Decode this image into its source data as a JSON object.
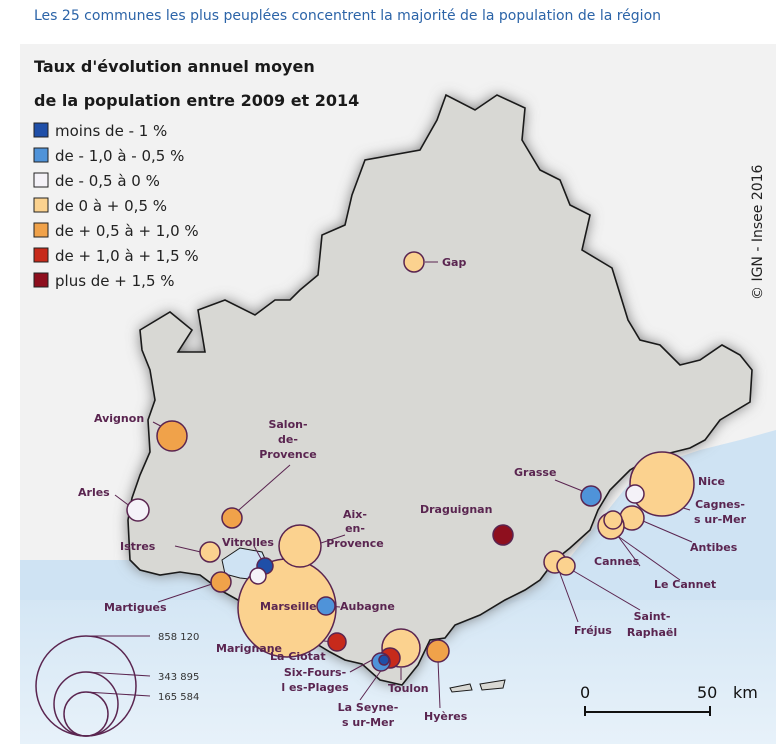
{
  "caption": "Les 25 communes les plus peuplées concentrent la majorité de la population de la région",
  "map": {
    "title_line1": "Taux d'évolution annuel moyen",
    "title_line2": "de la population entre 2009 et 2014",
    "credit": "© IGN - Insee 2016",
    "legend": [
      {
        "label": "moins de - 1 %",
        "color": "#1f4fa8"
      },
      {
        "label": " de - 1,0 à - 0,5 %",
        "color": "#4f93d9"
      },
      {
        "label": " de - 0,5 à 0 %",
        "color": "#f4f2f8"
      },
      {
        "label": "de 0 à + 0,5 %",
        "color": "#fbd28f"
      },
      {
        "label": " de + 0,5 à + 1,0 %",
        "color": "#f0a24a"
      },
      {
        "label": "de + 1,0 à + 1,5 %",
        "color": "#c72a1b"
      },
      {
        "label": "plus de + 1,5 %",
        "color": "#8e0f1e"
      }
    ],
    "size_legend": [
      "858 120",
      "343 895",
      "165 584"
    ],
    "scale": {
      "zero": "0",
      "fifty": "50",
      "unit": "km"
    },
    "cities": [
      {
        "name": "Gap",
        "color": "#fbd28f"
      },
      {
        "name": "Avignon",
        "color": "#f0a24a"
      },
      {
        "name": "Arles",
        "color": "#f4f2f8"
      },
      {
        "name": "Salon-\nde-\nProvence",
        "color": "#f0a24a"
      },
      {
        "name": "Aix-\nen-\nProvence",
        "color": "#fbd28f"
      },
      {
        "name": "Istres",
        "color": "#fbd28f"
      },
      {
        "name": "Vitrolles",
        "color": "#1f4fa8"
      },
      {
        "name": "Martigues",
        "color": "#f0a24a"
      },
      {
        "name": "Marignane",
        "color": "#f4f2f8"
      },
      {
        "name": "Marseille",
        "color": "#fbd28f"
      },
      {
        "name": "Aubagne",
        "color": "#4f93d9"
      },
      {
        "name": "La Ciotat",
        "color": "#c72a1b"
      },
      {
        "name": "Six-Fours-\nles-Plages",
        "color": "#4f93d9"
      },
      {
        "name": "La Seyne-\nsur-Mer",
        "color": "#1f4fa8"
      },
      {
        "name": "Toulon",
        "color": "#fbd28f"
      },
      {
        "name": "Hyères",
        "color": "#f0a24a"
      },
      {
        "name": "Draguignan",
        "color": "#8e0f1e"
      },
      {
        "name": "Grasse",
        "color": "#4f93d9"
      },
      {
        "name": "Nice",
        "color": "#fbd28f"
      },
      {
        "name": "Cagnes-\nsur-Mer",
        "color": "#f4f2f8"
      },
      {
        "name": "Antibes",
        "color": "#fbd28f"
      },
      {
        "name": "Cannes",
        "color": "#fbd28f"
      },
      {
        "name": "Le Cannet",
        "color": "#fbd28f"
      },
      {
        "name": "Saint-\nRaphaël",
        "color": "#fbd28f"
      },
      {
        "name": "Fréjus",
        "color": "#fbd28f"
      }
    ]
  }
}
